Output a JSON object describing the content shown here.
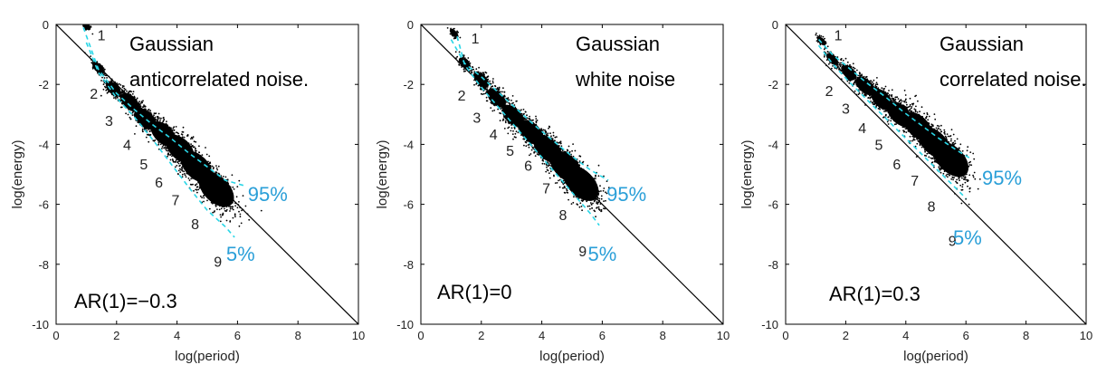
{
  "chart_data": [
    {
      "type": "scatter",
      "title": "Gaussian anticorrelated noise.",
      "title_lines": [
        "Gaussian",
        "anticorrelated noise."
      ],
      "ar_label": "AR(1)=−0.3",
      "xlabel": "log(period)",
      "ylabel": "log(energy)",
      "xlim": [
        0,
        10
      ],
      "ylim": [
        -10,
        0
      ],
      "xticks": [
        "0",
        "2",
        "4",
        "6",
        "8",
        "10"
      ],
      "yticks": [
        "0",
        "-2",
        "-4",
        "-6",
        "-8",
        "-10"
      ],
      "reference_line": {
        "x": [
          0,
          10
        ],
        "y": [
          0,
          -10
        ]
      },
      "clusters": [
        {
          "label": "1",
          "x": 1.0,
          "y": -0.05,
          "label_x": 1.5,
          "label_y": -0.35
        },
        {
          "label": "2",
          "x": 1.4,
          "y": -1.45,
          "label_x": 1.25,
          "label_y": -2.3
        },
        {
          "label": "3",
          "x": 1.9,
          "y": -2.15,
          "label_x": 1.75,
          "label_y": -3.2
        },
        {
          "label": "4",
          "x": 2.45,
          "y": -2.6,
          "label_x": 2.35,
          "label_y": -4.0
        },
        {
          "label": "5",
          "x": 2.95,
          "y": -3.15,
          "label_x": 2.9,
          "label_y": -4.65
        },
        {
          "label": "6",
          "x": 3.55,
          "y": -3.65,
          "label_x": 3.4,
          "label_y": -5.25
        },
        {
          "label": "7",
          "x": 4.1,
          "y": -4.15,
          "label_x": 3.95,
          "label_y": -5.85
        },
        {
          "label": "8",
          "x": 4.65,
          "y": -4.75,
          "label_x": 4.6,
          "label_y": -6.65
        },
        {
          "label": "9",
          "x": 5.3,
          "y": -5.5,
          "label_x": 5.35,
          "label_y": -7.9
        }
      ],
      "percentile_curves": [
        {
          "name": "95%",
          "label": "95%",
          "label_x": 7.0,
          "label_y": -5.65,
          "x": [
            0.9,
            1.4,
            2.0,
            2.6,
            3.2,
            3.8,
            4.4,
            5.0,
            5.6,
            6.3
          ],
          "y": [
            -0.1,
            -1.5,
            -2.3,
            -2.85,
            -3.35,
            -3.8,
            -4.3,
            -4.75,
            -5.2,
            -5.4
          ]
        },
        {
          "name": "5%",
          "label": "5%",
          "label_x": 6.1,
          "label_y": -7.65,
          "x": [
            1.0,
            1.4,
            2.0,
            2.6,
            3.2,
            3.8,
            4.4,
            5.0,
            5.6,
            5.9
          ],
          "y": [
            -0.6,
            -1.6,
            -2.45,
            -3.1,
            -3.85,
            -4.65,
            -5.45,
            -6.2,
            -6.75,
            -7.1
          ]
        }
      ]
    },
    {
      "type": "scatter",
      "title": "Gaussian white noise",
      "title_lines": [
        "Gaussian",
        "white noise"
      ],
      "ar_label": "AR(1)=0",
      "xlabel": "log(period)",
      "ylabel": "log(energy)",
      "xlim": [
        0,
        10
      ],
      "ylim": [
        -10,
        0
      ],
      "xticks": [
        "0",
        "2",
        "4",
        "6",
        "8",
        "10"
      ],
      "yticks": [
        "0",
        "-2",
        "-4",
        "-6",
        "-8",
        "-10"
      ],
      "reference_line": {
        "x": [
          0,
          10
        ],
        "y": [
          0,
          -10
        ]
      },
      "clusters": [
        {
          "label": "1",
          "x": 1.1,
          "y": -0.3,
          "label_x": 1.8,
          "label_y": -0.45
        },
        {
          "label": "2",
          "x": 1.45,
          "y": -1.3,
          "label_x": 1.35,
          "label_y": -2.35
        },
        {
          "label": "3",
          "x": 2.0,
          "y": -1.85,
          "label_x": 1.85,
          "label_y": -3.1
        },
        {
          "label": "4",
          "x": 2.5,
          "y": -2.45,
          "label_x": 2.4,
          "label_y": -3.65
        },
        {
          "label": "5",
          "x": 3.05,
          "y": -3.05,
          "label_x": 2.95,
          "label_y": -4.2
        },
        {
          "label": "6",
          "x": 3.65,
          "y": -3.6,
          "label_x": 3.55,
          "label_y": -4.7
        },
        {
          "label": "7",
          "x": 4.2,
          "y": -4.15,
          "label_x": 4.15,
          "label_y": -5.45
        },
        {
          "label": "8",
          "x": 4.8,
          "y": -4.75,
          "label_x": 4.7,
          "label_y": -6.35
        },
        {
          "label": "9",
          "x": 5.3,
          "y": -5.3,
          "label_x": 5.35,
          "label_y": -7.55
        }
      ],
      "percentile_curves": [
        {
          "name": "95%",
          "label": "95%",
          "label_x": 6.8,
          "label_y": -5.65,
          "x": [
            1.0,
            1.45,
            2.0,
            2.6,
            3.2,
            3.8,
            4.4,
            5.0,
            5.6,
            6.2
          ],
          "y": [
            -0.5,
            -1.3,
            -1.75,
            -2.3,
            -2.85,
            -3.4,
            -3.9,
            -4.4,
            -4.85,
            -5.2
          ]
        },
        {
          "name": "5%",
          "label": "5%",
          "label_x": 6.0,
          "label_y": -7.65,
          "x": [
            1.2,
            1.45,
            2.0,
            2.6,
            3.2,
            3.8,
            4.4,
            5.0,
            5.6,
            5.9
          ],
          "y": [
            -0.4,
            -1.35,
            -2.1,
            -2.8,
            -3.5,
            -4.2,
            -4.9,
            -5.6,
            -6.3,
            -6.7
          ]
        }
      ]
    },
    {
      "type": "scatter",
      "title": "Gaussian correlated noise.",
      "title_lines": [
        "Gaussian",
        "correlated noise."
      ],
      "ar_label": "AR(1)=0.3",
      "xlabel": "log(period)",
      "ylabel": "log(energy)",
      "xlim": [
        0,
        10
      ],
      "ylim": [
        -10,
        0
      ],
      "xticks": [
        "0",
        "2",
        "4",
        "6",
        "8",
        "10"
      ],
      "yticks": [
        "0",
        "-2",
        "-4",
        "-6",
        "-8",
        "-10"
      ],
      "reference_line": {
        "x": [
          0,
          10
        ],
        "y": [
          0,
          -10
        ]
      },
      "clusters": [
        {
          "label": "1",
          "x": 1.2,
          "y": -0.55,
          "label_x": 1.75,
          "label_y": -0.35
        },
        {
          "label": "2",
          "x": 1.55,
          "y": -1.15,
          "label_x": 1.45,
          "label_y": -2.2
        },
        {
          "label": "3",
          "x": 2.1,
          "y": -1.6,
          "label_x": 2.0,
          "label_y": -2.8
        },
        {
          "label": "4",
          "x": 2.65,
          "y": -2.05,
          "label_x": 2.55,
          "label_y": -3.45
        },
        {
          "label": "5",
          "x": 3.2,
          "y": -2.5,
          "label_x": 3.1,
          "label_y": -4.0
        },
        {
          "label": "6",
          "x": 3.8,
          "y": -3.0,
          "label_x": 3.7,
          "label_y": -4.65
        },
        {
          "label": "7",
          "x": 4.4,
          "y": -3.4,
          "label_x": 4.3,
          "label_y": -5.2
        },
        {
          "label": "8",
          "x": 4.95,
          "y": -3.95,
          "label_x": 4.85,
          "label_y": -6.05
        },
        {
          "label": "9",
          "x": 5.5,
          "y": -4.5,
          "label_x": 5.55,
          "label_y": -7.2
        }
      ],
      "percentile_curves": [
        {
          "name": "95%",
          "label": "95%",
          "label_x": 7.2,
          "label_y": -5.1,
          "x": [
            1.1,
            1.55,
            2.1,
            2.7,
            3.3,
            3.9,
            4.5,
            5.1,
            5.7,
            6.2
          ],
          "y": [
            -0.5,
            -1.0,
            -1.45,
            -1.95,
            -2.4,
            -2.9,
            -3.35,
            -3.8,
            -4.2,
            -4.5
          ]
        },
        {
          "name": "5%",
          "label": "5%",
          "label_x": 6.05,
          "label_y": -7.1,
          "x": [
            1.1,
            1.55,
            2.1,
            2.7,
            3.3,
            3.9,
            4.5,
            5.1,
            5.6,
            6.0
          ],
          "y": [
            -0.7,
            -1.3,
            -1.9,
            -2.5,
            -3.1,
            -3.7,
            -4.3,
            -4.9,
            -5.4,
            -5.8
          ]
        }
      ]
    }
  ],
  "colors": {
    "annotation": "#2a9fd8",
    "curve": "#29d6e6",
    "points": "#000000",
    "axis": "#000000",
    "tick_text": "#222222"
  }
}
